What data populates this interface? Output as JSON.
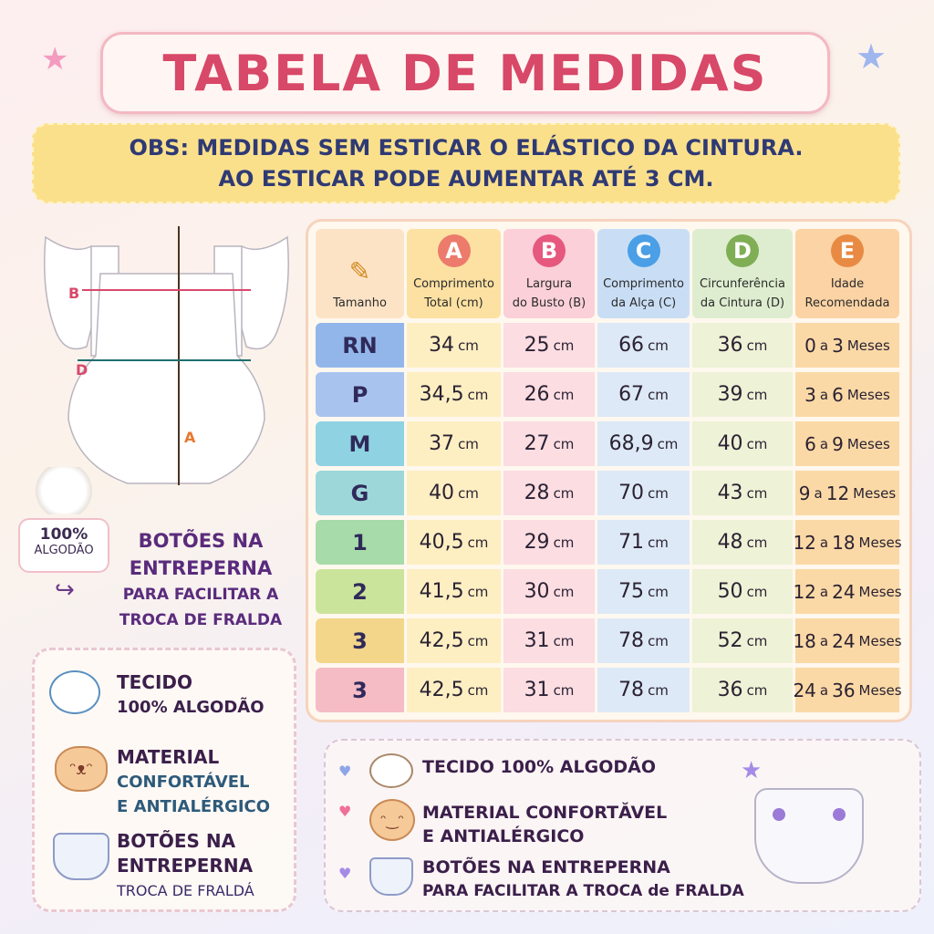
{
  "title": "TABELA DE MEDIDAS",
  "obs": {
    "line1": "OBS: MEDIDAS SEM ESTICAR O ELÁSTICO DA CINTURA.",
    "line2": "AO ESTICAR PODE AUMENTAR ATÉ 3 CM."
  },
  "diagram": {
    "label_a": "A",
    "label_b": "B",
    "label_d": "D"
  },
  "cotton_badge": {
    "line1": "100%",
    "line2": "ALGODÃO"
  },
  "buttons_note": {
    "line1": "BOTÕES NA",
    "line2": "ENTREPERNA",
    "line3": "PARA FACILITAR A",
    "line4": "TROCA DE FRALDA"
  },
  "table": {
    "headers": [
      {
        "letter": "",
        "line1": "Tamanho",
        "line2": ""
      },
      {
        "letter": "A",
        "line1": "Comprimento",
        "line2": "Total (cm)",
        "color": "#ec7b6c"
      },
      {
        "letter": "B",
        "line1": "Largura",
        "line2": "do Busto (B)",
        "color": "#e6587e"
      },
      {
        "letter": "C",
        "line1": "Comprimento",
        "line2": "da Alça (C)",
        "color": "#4a9fe6"
      },
      {
        "letter": "D",
        "line1": "Circunferência",
        "line2": "da Cintura (D)",
        "color": "#7fae55"
      },
      {
        "letter": "E",
        "line1": "Idade",
        "line2": "Recomendada",
        "color": "#e88a44"
      }
    ],
    "unit": "cm",
    "rows": [
      {
        "size": "RN",
        "a": "34",
        "b": "25",
        "c": "66",
        "d": "36",
        "age_from": "0",
        "age_to": "3",
        "age_unit": "Meses",
        "color": "#93b6ea"
      },
      {
        "size": "P",
        "a": "34,5",
        "b": "26",
        "c": "67",
        "d": "39",
        "age_from": "3",
        "age_to": "6",
        "age_unit": "Meses",
        "color": "#a9c3ef"
      },
      {
        "size": "M",
        "a": "37",
        "b": "27",
        "c": "68,9",
        "d": "40",
        "age_from": "6",
        "age_to": "9",
        "age_unit": "Meses",
        "color": "#8fd2e2"
      },
      {
        "size": "G",
        "a": "40",
        "b": "28",
        "c": "70",
        "d": "43",
        "age_from": "9",
        "age_to": "12",
        "age_unit": "Meses",
        "color": "#9dd7da"
      },
      {
        "size": "1",
        "a": "40,5",
        "b": "29",
        "c": "71",
        "d": "48",
        "age_from": "12",
        "age_to": "18",
        "age_unit": "Meses",
        "color": "#a7dba9"
      },
      {
        "size": "2",
        "a": "41,5",
        "b": "30",
        "c": "75",
        "d": "50",
        "age_from": "12",
        "age_to": "24",
        "age_unit": "Meses",
        "color": "#cbe49c"
      },
      {
        "size": "3",
        "a": "42,5",
        "b": "31",
        "c": "78",
        "d": "52",
        "age_from": "18",
        "age_to": "24",
        "age_unit": "Meses",
        "color": "#f4d68a"
      },
      {
        "size": "3",
        "a": "42,5",
        "b": "31",
        "c": "78",
        "d": "36",
        "age_from": "24",
        "age_to": "36",
        "age_unit": "Meses",
        "color": "#f5bcc6"
      }
    ],
    "age_sep": "a"
  },
  "left_features": [
    {
      "title": "TECIDO",
      "sub": "100% ALGODÃO"
    },
    {
      "title": "MATERIAL",
      "sub": "CONFORTÁVEL",
      "sub2": "E ANTIALÉRGICO"
    },
    {
      "title": "BOTÕES NA",
      "title2": "ENTREPERNA",
      "sub": "TROCA DE FRALDÁ"
    }
  ],
  "bottom_features": [
    {
      "line1": "TECIDO 100% ALGODÃO"
    },
    {
      "line1": "MATERIAL CONFORTĂVEL",
      "line2": "E ANTIALÉRGICO"
    },
    {
      "line1": "BOTÕES NA ENTREPERNA",
      "line2": "PARA FACILITAR A TROCA de FRALDA"
    }
  ]
}
